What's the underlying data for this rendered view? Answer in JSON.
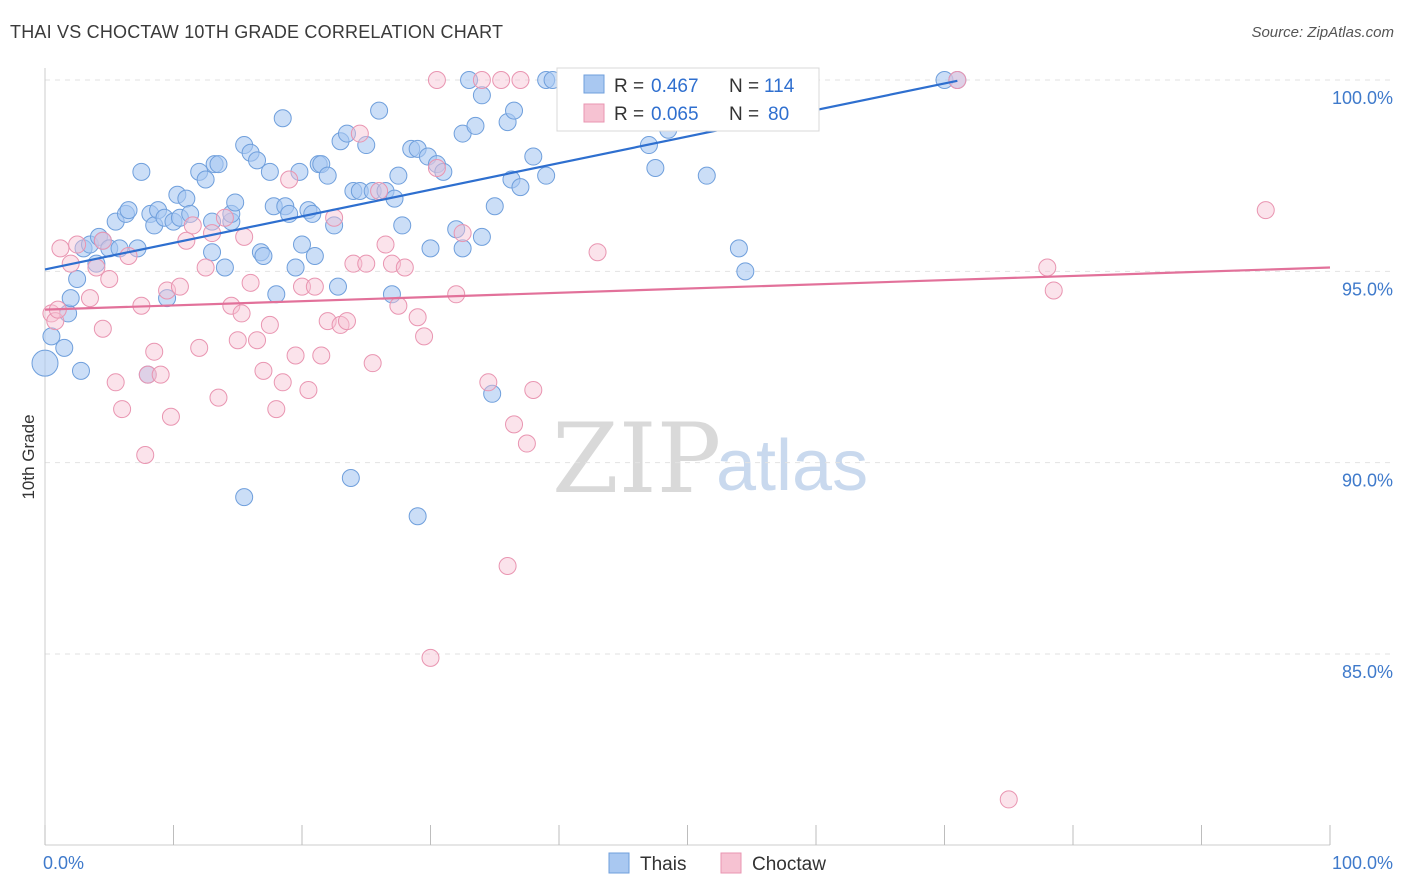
{
  "header": {
    "title": "THAI VS CHOCTAW 10TH GRADE CORRELATION CHART",
    "source": "Source: ZipAtlas.com"
  },
  "colors": {
    "thai_fill": "#a9c8f1",
    "thai_stroke": "#6f9fdc",
    "thai_line": "#2e6fcf",
    "choctaw_fill": "#f6c2d2",
    "choctaw_stroke": "#e995b1",
    "choctaw_line": "#e2719a",
    "tick_text": "#3f7acb",
    "grid": "#e2e2e2"
  },
  "watermark": {
    "zip": "ZIP",
    "atlas": "atlas"
  },
  "legend": {
    "rows": [
      {
        "r_label": "R =",
        "r_value": "0.467",
        "n_label": "N =",
        "n_value": "114"
      },
      {
        "r_label": "R =",
        "r_value": "0.065",
        "n_label": "N =",
        "n_value": "80"
      }
    ]
  },
  "bottom_legend": {
    "thai": "Thais",
    "choctaw": "Choctaw"
  },
  "chart_data": {
    "type": "scatter",
    "title": "THAI VS CHOCTAW 10TH GRADE CORRELATION CHART",
    "xlabel": "",
    "ylabel": "10th Grade",
    "xlim": [
      0,
      100
    ],
    "ylim": [
      80.0,
      100.5
    ],
    "x_tick_labels": [
      "0.0%",
      "100.0%"
    ],
    "y_ticks": [
      85.0,
      90.0,
      95.0,
      100.0
    ],
    "y_tick_labels": [
      "85.0%",
      "90.0%",
      "95.0%",
      "100.0%"
    ],
    "grid": true,
    "legend_position": "top-center",
    "series": [
      {
        "name": "Thais",
        "r": 0.467,
        "n": 114,
        "trend": {
          "x0": 0,
          "y0": 95.05,
          "x1": 71,
          "y1": 99.98
        },
        "points": [
          [
            0,
            92.6
          ],
          [
            0.5,
            93.3
          ],
          [
            1.5,
            93.0
          ],
          [
            1.8,
            93.9
          ],
          [
            2,
            94.3
          ],
          [
            2.8,
            92.4
          ],
          [
            2.5,
            94.8
          ],
          [
            3,
            95.6
          ],
          [
            3.5,
            95.7
          ],
          [
            4,
            95.2
          ],
          [
            4.2,
            95.9
          ],
          [
            4.5,
            95.8
          ],
          [
            5,
            95.6
          ],
          [
            5.5,
            96.3
          ],
          [
            5.8,
            95.6
          ],
          [
            6.3,
            96.5
          ],
          [
            6.5,
            96.6
          ],
          [
            7.2,
            95.6
          ],
          [
            7.5,
            97.6
          ],
          [
            8,
            92.3
          ],
          [
            8.2,
            96.5
          ],
          [
            8.5,
            96.2
          ],
          [
            8.8,
            96.6
          ],
          [
            9.3,
            96.4
          ],
          [
            9.5,
            94.3
          ],
          [
            10,
            96.3
          ],
          [
            10.3,
            97.0
          ],
          [
            10.5,
            96.4
          ],
          [
            11,
            96.9
          ],
          [
            11.3,
            96.5
          ],
          [
            12,
            97.6
          ],
          [
            12.5,
            97.4
          ],
          [
            13,
            96.3
          ],
          [
            13,
            95.5
          ],
          [
            13.2,
            97.8
          ],
          [
            13.5,
            97.8
          ],
          [
            14,
            95.1
          ],
          [
            14.5,
            96.3
          ],
          [
            14.5,
            96.5
          ],
          [
            14.8,
            96.8
          ],
          [
            15.5,
            89.1
          ],
          [
            15.5,
            98.3
          ],
          [
            16,
            98.1
          ],
          [
            16.5,
            97.9
          ],
          [
            16.8,
            95.5
          ],
          [
            17,
            95.4
          ],
          [
            17.5,
            97.6
          ],
          [
            17.8,
            96.7
          ],
          [
            18,
            94.4
          ],
          [
            18.5,
            99.0
          ],
          [
            18.7,
            96.7
          ],
          [
            19,
            96.5
          ],
          [
            19.5,
            95.1
          ],
          [
            19.8,
            97.6
          ],
          [
            20,
            95.7
          ],
          [
            20.5,
            96.6
          ],
          [
            20.8,
            96.5
          ],
          [
            21,
            95.4
          ],
          [
            21.3,
            97.8
          ],
          [
            21.5,
            97.8
          ],
          [
            22,
            97.5
          ],
          [
            22.5,
            96.2
          ],
          [
            22.8,
            94.6
          ],
          [
            23,
            98.4
          ],
          [
            23.5,
            98.6
          ],
          [
            23.8,
            89.6
          ],
          [
            24,
            97.1
          ],
          [
            24.5,
            97.1
          ],
          [
            25,
            98.3
          ],
          [
            25.5,
            97.1
          ],
          [
            26,
            99.2
          ],
          [
            26.5,
            97.1
          ],
          [
            27,
            94.4
          ],
          [
            27.2,
            96.9
          ],
          [
            27.5,
            97.5
          ],
          [
            27.8,
            96.2
          ],
          [
            28.5,
            98.2
          ],
          [
            29,
            98.2
          ],
          [
            29,
            88.6
          ],
          [
            29.8,
            98.0
          ],
          [
            30,
            95.6
          ],
          [
            30.5,
            97.8
          ],
          [
            31,
            97.6
          ],
          [
            32,
            96.1
          ],
          [
            32.5,
            95.6
          ],
          [
            32.5,
            98.6
          ],
          [
            33,
            100.0
          ],
          [
            33.5,
            98.8
          ],
          [
            34,
            95.9
          ],
          [
            34,
            99.6
          ],
          [
            34.8,
            91.8
          ],
          [
            35,
            96.7
          ],
          [
            36,
            98.9
          ],
          [
            36.3,
            97.4
          ],
          [
            36.5,
            99.2
          ],
          [
            37,
            97.2
          ],
          [
            38,
            98.0
          ],
          [
            39,
            97.5
          ],
          [
            39,
            100.0
          ],
          [
            39.5,
            100.0
          ],
          [
            42,
            100.0
          ],
          [
            44,
            100.0
          ],
          [
            45,
            100.0
          ],
          [
            46,
            100.0
          ],
          [
            47,
            98.3
          ],
          [
            47.5,
            97.7
          ],
          [
            48.5,
            98.7
          ],
          [
            49,
            99.0
          ],
          [
            51,
            100.0
          ],
          [
            51.5,
            97.5
          ],
          [
            54,
            95.6
          ],
          [
            54.5,
            95.0
          ],
          [
            70,
            100.0
          ],
          [
            71,
            100.0
          ]
        ]
      },
      {
        "name": "Choctaw",
        "r": 0.065,
        "n": 80,
        "trend": {
          "x0": 0,
          "y0": 94.0,
          "x1": 100,
          "y1": 95.1
        },
        "points": [
          [
            0.5,
            93.9
          ],
          [
            0.8,
            93.7
          ],
          [
            1,
            94.0
          ],
          [
            1.2,
            95.6
          ],
          [
            2,
            95.2
          ],
          [
            2.5,
            95.7
          ],
          [
            3.5,
            94.3
          ],
          [
            4,
            95.1
          ],
          [
            4.5,
            95.8
          ],
          [
            4.5,
            93.5
          ],
          [
            5,
            94.8
          ],
          [
            5.5,
            92.1
          ],
          [
            6,
            91.4
          ],
          [
            6.5,
            95.4
          ],
          [
            7.5,
            94.1
          ],
          [
            7.8,
            90.2
          ],
          [
            8,
            92.3
          ],
          [
            8.5,
            92.9
          ],
          [
            9,
            92.3
          ],
          [
            9.5,
            94.5
          ],
          [
            9.8,
            91.2
          ],
          [
            10.5,
            94.6
          ],
          [
            11,
            95.8
          ],
          [
            11.5,
            96.2
          ],
          [
            12,
            93.0
          ],
          [
            12.5,
            95.1
          ],
          [
            13,
            96.0
          ],
          [
            13.5,
            91.7
          ],
          [
            14,
            96.4
          ],
          [
            14.5,
            94.1
          ],
          [
            15,
            93.2
          ],
          [
            15.3,
            93.9
          ],
          [
            15.5,
            95.9
          ],
          [
            16,
            94.7
          ],
          [
            16.5,
            93.2
          ],
          [
            17,
            92.4
          ],
          [
            17.5,
            93.6
          ],
          [
            18,
            91.4
          ],
          [
            18.5,
            92.1
          ],
          [
            19,
            97.4
          ],
          [
            19.5,
            92.8
          ],
          [
            20,
            94.6
          ],
          [
            20.5,
            91.9
          ],
          [
            21,
            94.6
          ],
          [
            21.5,
            92.8
          ],
          [
            22,
            93.7
          ],
          [
            22.5,
            96.4
          ],
          [
            23,
            93.6
          ],
          [
            23.5,
            93.7
          ],
          [
            24,
            95.2
          ],
          [
            24.5,
            98.6
          ],
          [
            25,
            95.2
          ],
          [
            25.5,
            92.6
          ],
          [
            26,
            97.1
          ],
          [
            26.5,
            95.7
          ],
          [
            27,
            95.2
          ],
          [
            27.5,
            94.1
          ],
          [
            28,
            95.1
          ],
          [
            29,
            93.8
          ],
          [
            29.5,
            93.3
          ],
          [
            30,
            84.9
          ],
          [
            30.5,
            97.7
          ],
          [
            32,
            94.4
          ],
          [
            32.5,
            96.0
          ],
          [
            34,
            100.0
          ],
          [
            34.5,
            92.1
          ],
          [
            35.5,
            100.0
          ],
          [
            36,
            87.3
          ],
          [
            36.5,
            91.0
          ],
          [
            37,
            100.0
          ],
          [
            37.5,
            90.5
          ],
          [
            38,
            91.9
          ],
          [
            43,
            95.5
          ],
          [
            47,
            99.0
          ],
          [
            75,
            81.2
          ],
          [
            78,
            95.1
          ],
          [
            78.5,
            94.5
          ],
          [
            95,
            96.6
          ],
          [
            71,
            100.0
          ],
          [
            30.5,
            100.0
          ]
        ]
      }
    ]
  }
}
